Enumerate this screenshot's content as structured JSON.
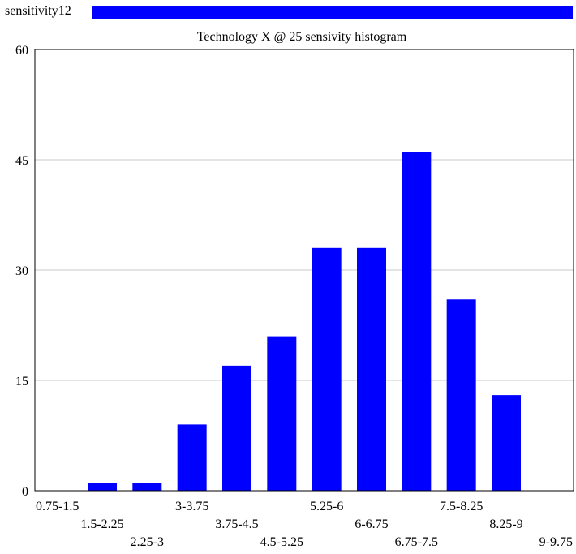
{
  "legend": {
    "label": "sensitivity12",
    "color": "#0000ff"
  },
  "chart_data": {
    "type": "bar",
    "title": "Technology X @ 25 sensivity histogram",
    "categories": [
      "0.75-1.5",
      "1.5-2.25",
      "2.25-3",
      "3-3.75",
      "3.75-4.5",
      "4.5-5.25",
      "5.25-6",
      "6-6.75",
      "6.75-7.5",
      "7.5-8.25",
      "8.25-9",
      "9-9.75"
    ],
    "series": [
      {
        "name": "sensitivity12",
        "color": "#0000ff",
        "values": [
          0,
          1,
          1,
          9,
          17,
          21,
          33,
          33,
          46,
          26,
          13,
          0
        ]
      }
    ],
    "ylim": [
      0,
      60
    ],
    "yticks": [
      0,
      15,
      30,
      45,
      60
    ],
    "grid": true
  }
}
